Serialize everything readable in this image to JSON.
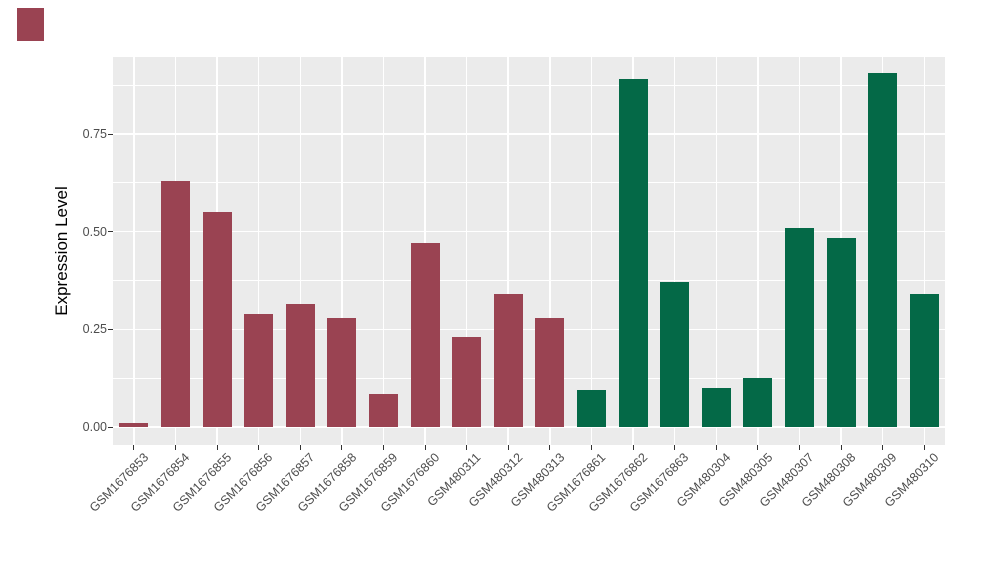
{
  "corner_marker": {
    "color": "#9A4352"
  },
  "chart_data": {
    "type": "bar",
    "title": "",
    "xlabel": "",
    "ylabel": "Expression Level",
    "categories": [
      "GSM1676853",
      "GSM1676854",
      "GSM1676855",
      "GSM1676856",
      "GSM1676857",
      "GSM1676858",
      "GSM1676859",
      "GSM1676860",
      "GSM480311",
      "GSM480312",
      "GSM480313",
      "GSM1676861",
      "GSM1676862",
      "GSM1676863",
      "GSM480304",
      "GSM480305",
      "GSM480307",
      "GSM480308",
      "GSM480309",
      "GSM480310"
    ],
    "values": [
      0.01,
      0.63,
      0.55,
      0.29,
      0.315,
      0.28,
      0.085,
      0.47,
      0.23,
      0.34,
      0.28,
      0.095,
      0.89,
      0.37,
      0.1,
      0.125,
      0.51,
      0.485,
      0.905,
      0.34
    ],
    "groups": [
      "maroon",
      "maroon",
      "maroon",
      "maroon",
      "maroon",
      "maroon",
      "maroon",
      "maroon",
      "maroon",
      "maroon",
      "maroon",
      "green",
      "green",
      "green",
      "green",
      "green",
      "green",
      "green",
      "green",
      "green"
    ],
    "colors": {
      "maroon": "#9A4352",
      "green": "#046947"
    },
    "yticks": [
      0,
      0.25,
      0.5,
      0.75
    ],
    "ytick_labels": [
      "0.00",
      "0.25",
      "0.50",
      "0.75"
    ],
    "minor_yticks": [
      0.125,
      0.375,
      0.625,
      0.875
    ],
    "ylim": [
      -0.047,
      0.947
    ],
    "panel_bg": "#EBEBEB",
    "grid_color": "#FFFFFF",
    "tick_color": "#333333",
    "axis_text_color": "#4D4D4D",
    "legend": "none",
    "grid": "major horizontal + minor horizontal + major vertical, white on grey panel"
  }
}
